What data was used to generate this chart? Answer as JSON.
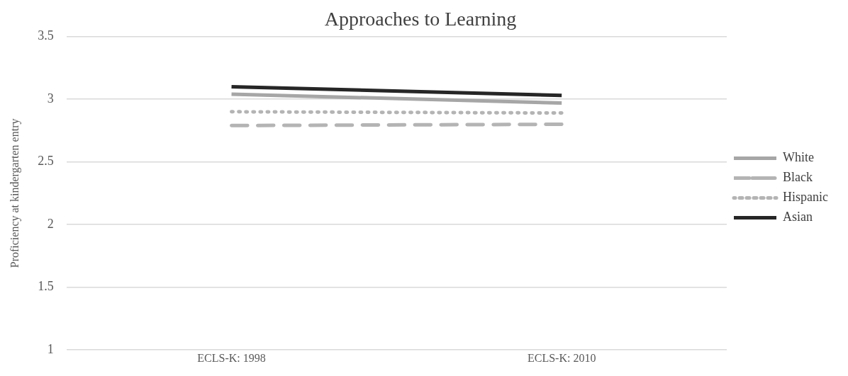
{
  "chart_data": {
    "type": "line",
    "title": "Approaches to Learning",
    "ylabel": "Proficiency at kindergarten entry",
    "categories": [
      "ECLS-K: 1998",
      "ECLS-K: 2010"
    ],
    "series": [
      {
        "name": "White",
        "color": "#a6a6a6",
        "values": [
          3.04,
          2.97
        ],
        "line_style": "solid"
      },
      {
        "name": "Black",
        "color": "#b4b4b4",
        "values": [
          2.79,
          2.8
        ],
        "line_style": "dashed"
      },
      {
        "name": "Hispanic",
        "color": "#b4b4b4",
        "values": [
          2.9,
          2.89
        ],
        "line_style": "dotted"
      },
      {
        "name": "Asian",
        "color": "#262626",
        "values": [
          3.1,
          3.03
        ],
        "line_style": "solid"
      }
    ],
    "ylim": [
      1,
      3.5
    ],
    "yticks": [
      1,
      1.5,
      2,
      2.5,
      3,
      3.5
    ],
    "grid": "y",
    "legend": "right",
    "marker": "none"
  }
}
